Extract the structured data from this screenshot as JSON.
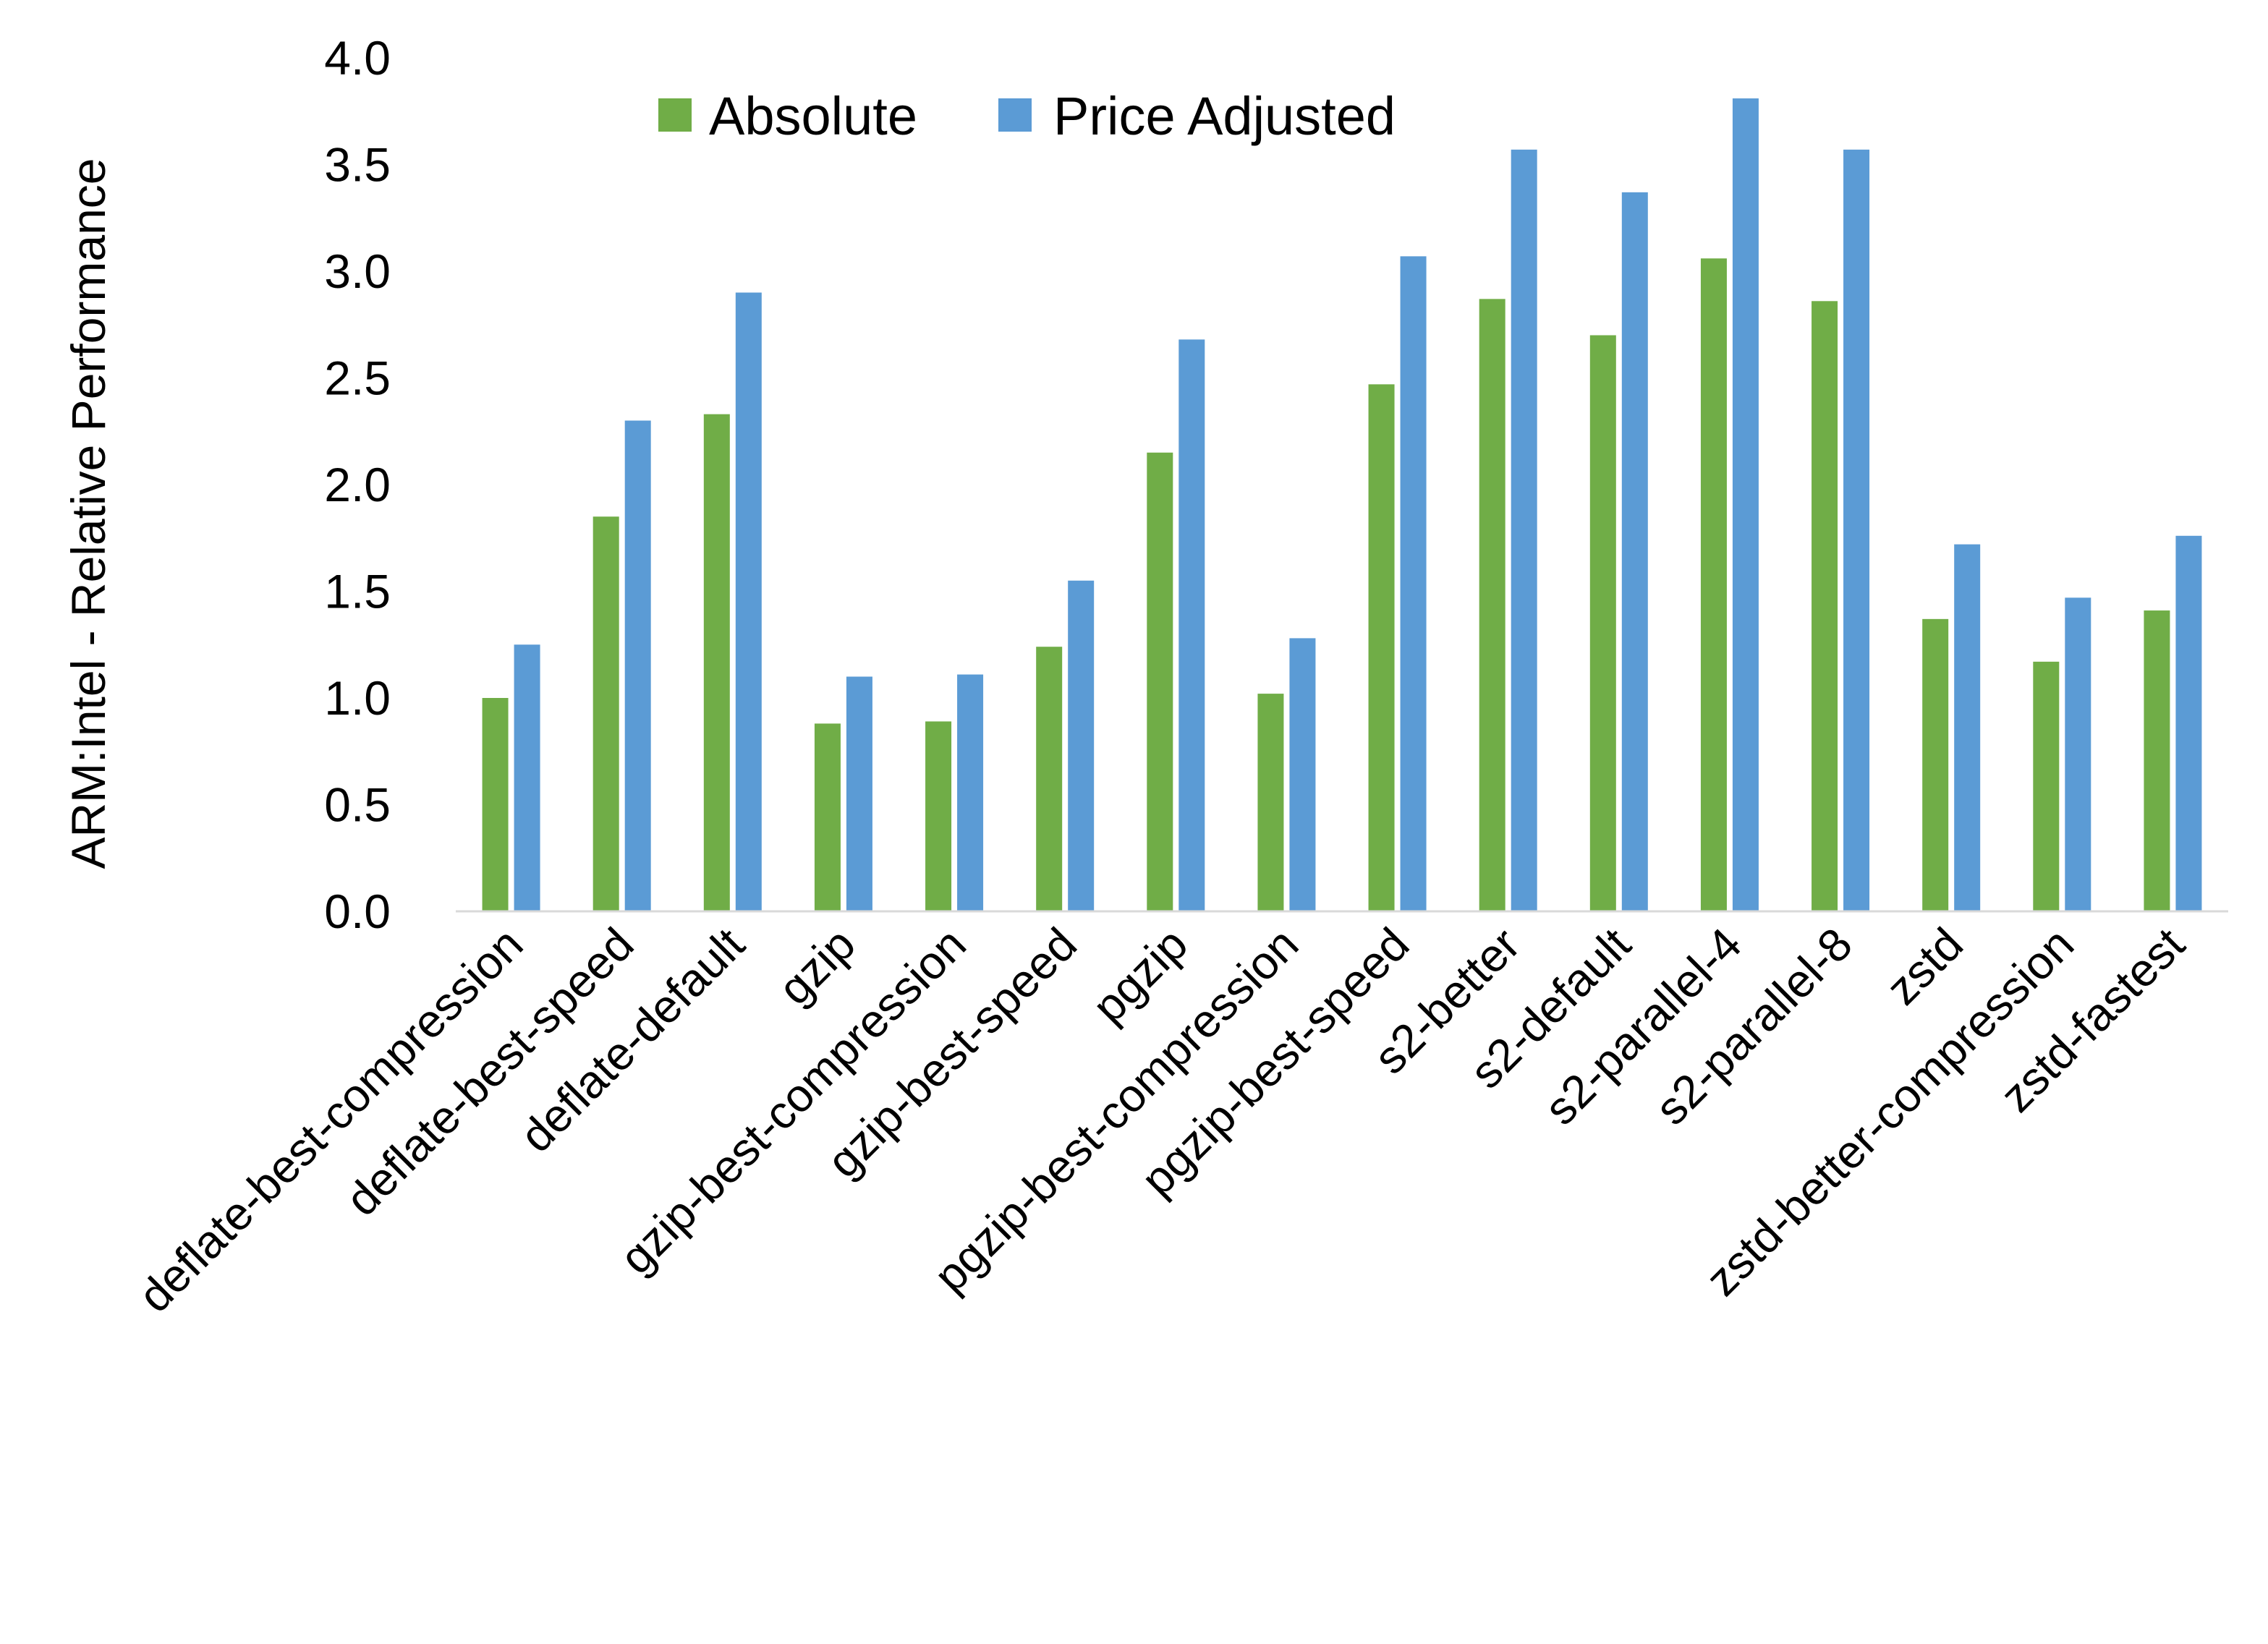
{
  "chart_data": {
    "type": "bar",
    "title": "",
    "xlabel": "",
    "ylabel": "ARM:Intel - Relative Performance",
    "ylim": [
      0,
      4.0
    ],
    "yticks": [
      "0.0",
      "0.5",
      "1.0",
      "1.5",
      "2.0",
      "2.5",
      "3.0",
      "3.5",
      "4.0"
    ],
    "grid": false,
    "legend_position": "top",
    "categories": [
      "deflate-best-compression",
      "deflate-best-speed",
      "deflate-default",
      "gzip",
      "gzip-best-compression",
      "gzip-best-speed",
      "pgzip",
      "pgzip-best-compression",
      "pgzip-best-speed",
      "s2-better",
      "s2-default",
      "s2-parallel-4",
      "s2-parallel-8",
      "zstd",
      "zstd-better-compression",
      "zstd-fastest"
    ],
    "series": [
      {
        "name": "Absolute",
        "color": "#70AD47",
        "values": [
          1.0,
          1.85,
          2.33,
          0.88,
          0.89,
          1.24,
          2.15,
          1.02,
          2.47,
          2.87,
          2.7,
          3.06,
          2.86,
          1.37,
          1.17,
          1.41
        ]
      },
      {
        "name": "Price Adjusted",
        "color": "#5B9BD5",
        "values": [
          1.25,
          2.3,
          2.9,
          1.1,
          1.11,
          1.55,
          2.68,
          1.28,
          3.07,
          3.57,
          3.37,
          3.81,
          3.57,
          1.72,
          1.47,
          1.76
        ]
      }
    ]
  }
}
